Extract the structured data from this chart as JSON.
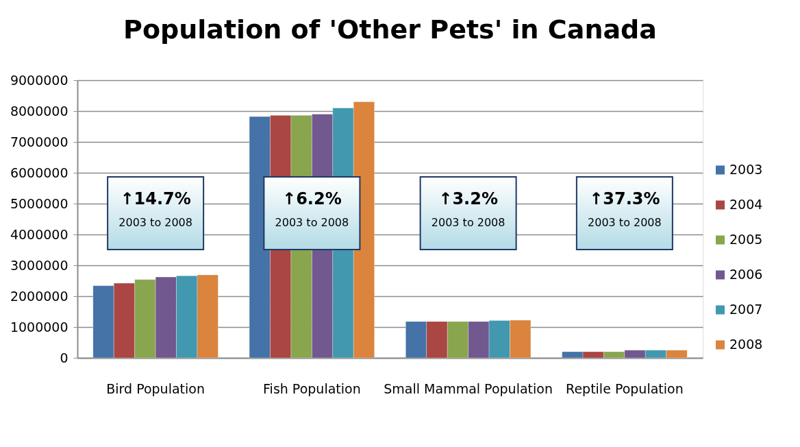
{
  "chart_data": {
    "type": "bar",
    "title": "Population of 'Other Pets' in Canada",
    "categories": [
      "Bird Population",
      "Fish Population",
      "Small Mammal Population",
      "Reptile Population"
    ],
    "series": [
      {
        "name": "2003",
        "color": "#4572a7",
        "values": [
          2340000,
          7820000,
          1180000,
          200000
        ]
      },
      {
        "name": "2004",
        "color": "#aa4643",
        "values": [
          2420000,
          7860000,
          1180000,
          200000
        ]
      },
      {
        "name": "2005",
        "color": "#89a54e",
        "values": [
          2540000,
          7860000,
          1180000,
          200000
        ]
      },
      {
        "name": "2006",
        "color": "#71588f",
        "values": [
          2620000,
          7900000,
          1180000,
          250000
        ]
      },
      {
        "name": "2007",
        "color": "#4198af",
        "values": [
          2660000,
          8100000,
          1210000,
          250000
        ]
      },
      {
        "name": "2008",
        "color": "#db843d",
        "values": [
          2690000,
          8300000,
          1220000,
          250000
        ]
      }
    ],
    "ylim": [
      0,
      9000000
    ],
    "yticks": [
      0,
      1000000,
      2000000,
      3000000,
      4000000,
      5000000,
      6000000,
      7000000,
      8000000,
      9000000
    ],
    "grid": "y",
    "legend": "right",
    "annotations": [
      "↑14.7%",
      "2003 to 2008",
      "↑6.2%",
      "2003 to 2008",
      "↑3.2%",
      "2003 to 2008",
      "↑37.3%",
      "2003 to 2008"
    ]
  }
}
